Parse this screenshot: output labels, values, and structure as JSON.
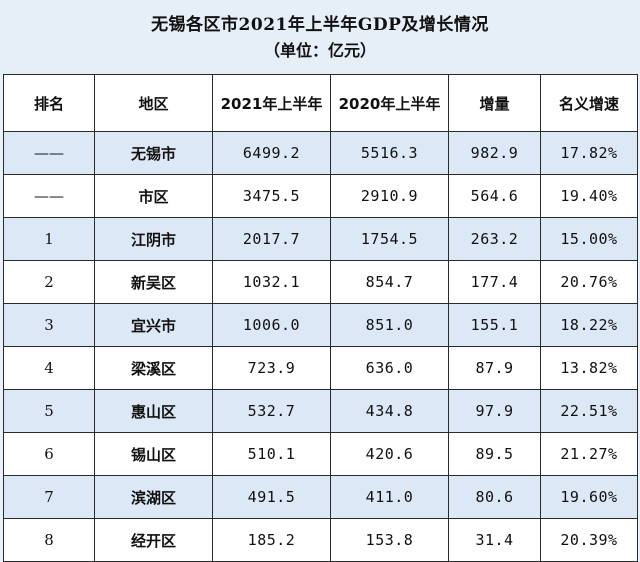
{
  "title": "无锡各区市2021年上半年GDP及增长情况",
  "unit": "（单位：亿元）",
  "columns": [
    "排名",
    "地区",
    "2021年上半年",
    "2020年上半年",
    "增量",
    "名义增速"
  ],
  "rows": [
    {
      "rank": "——",
      "region": "无锡市",
      "y2021": "6499.2",
      "y2020": "5516.3",
      "delta": "982.9",
      "growth": "17.82%"
    },
    {
      "rank": "——",
      "region": "市区",
      "y2021": "3475.5",
      "y2020": "2910.9",
      "delta": "564.6",
      "growth": "19.40%"
    },
    {
      "rank": "1",
      "region": "江阴市",
      "y2021": "2017.7",
      "y2020": "1754.5",
      "delta": "263.2",
      "growth": "15.00%"
    },
    {
      "rank": "2",
      "region": "新吴区",
      "y2021": "1032.1",
      "y2020": "854.7",
      "delta": "177.4",
      "growth": "20.76%"
    },
    {
      "rank": "3",
      "region": "宜兴市",
      "y2021": "1006.0",
      "y2020": "851.0",
      "delta": "155.1",
      "growth": "18.22%"
    },
    {
      "rank": "4",
      "region": "梁溪区",
      "y2021": "723.9",
      "y2020": "636.0",
      "delta": "87.9",
      "growth": "13.82%"
    },
    {
      "rank": "5",
      "region": "惠山区",
      "y2021": "532.7",
      "y2020": "434.8",
      "delta": "97.9",
      "growth": "22.51%"
    },
    {
      "rank": "6",
      "region": "锡山区",
      "y2021": "510.1",
      "y2020": "420.6",
      "delta": "89.5",
      "growth": "21.27%"
    },
    {
      "rank": "7",
      "region": "滨湖区",
      "y2021": "491.5",
      "y2020": "411.0",
      "delta": "80.6",
      "growth": "19.60%"
    },
    {
      "rank": "8",
      "region": "经开区",
      "y2021": "185.2",
      "y2020": "153.8",
      "delta": "31.4",
      "growth": "20.39%"
    }
  ]
}
